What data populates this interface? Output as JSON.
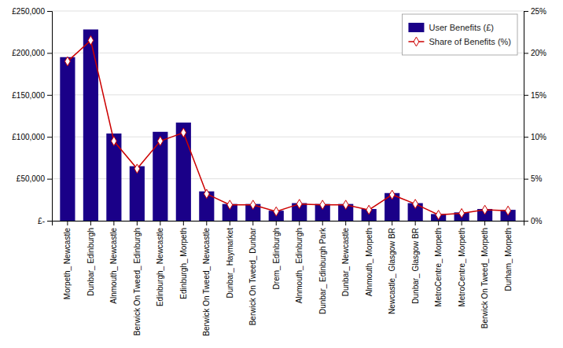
{
  "chart_data": {
    "type": "bar",
    "categories": [
      "Morpeth_ Newcastle",
      "Dunbar_ Edinburgh",
      "Alnmouth_ Newcastle",
      "Berwick On Tweed_ Edinburgh",
      "Edinburgh_ Newcastle",
      "Edinburgh_ Morpeth",
      "Berwick On Tweed_ Newcastle",
      "Dunbar_ Haymarket",
      "Berwick On Tweed_ Dunbar",
      "Drem_ Edinburgh",
      "Alnmouth_ Edinburgh",
      "Dunbar_ Edinburgh Park",
      "Dunbar_ Newcastle",
      "Alnmouth_ Morpeth",
      "Newcastle_ Glasgow BR",
      "Dunbar_ Glasgow BR",
      "MetroCentre_ Morpeth",
      "MetroCentre_ Morpeth",
      "Berwick On Tweed_ Morpeth",
      "Durham_ Morpeth"
    ],
    "series": [
      {
        "name": "User Benefits (£)",
        "type": "bar",
        "color": "#1a0088",
        "values": [
          195000,
          228000,
          104000,
          65000,
          106000,
          117000,
          35000,
          20000,
          20000,
          12000,
          21000,
          20000,
          20000,
          14000,
          33000,
          21000,
          8000,
          10000,
          14000,
          13000
        ]
      },
      {
        "name": "Share of Benefits (%)",
        "type": "line",
        "axis": "y2",
        "color": "#CC0000",
        "marker": "diamond",
        "values": [
          19.0,
          21.5,
          9.5,
          6.2,
          9.5,
          10.5,
          3.2,
          1.9,
          1.9,
          1.1,
          2.0,
          1.9,
          1.9,
          1.3,
          3.1,
          2.0,
          0.7,
          0.9,
          1.3,
          1.2
        ]
      }
    ],
    "ylim": [
      0,
      250000
    ],
    "yticks": [
      {
        "value": 0,
        "label": "£-"
      },
      {
        "value": 50000,
        "label": "£50,000"
      },
      {
        "value": 100000,
        "label": "£100,000"
      },
      {
        "value": 150000,
        "label": "£150,000"
      },
      {
        "value": 200000,
        "label": "£200,000"
      },
      {
        "value": 250000,
        "label": "£250,000"
      }
    ],
    "y2lim": [
      0,
      25
    ],
    "y2ticks": [
      {
        "value": 0,
        "label": "0%"
      },
      {
        "value": 5,
        "label": "5%"
      },
      {
        "value": 10,
        "label": "10%"
      },
      {
        "value": 15,
        "label": "15%"
      },
      {
        "value": 20,
        "label": "20%"
      },
      {
        "value": 25,
        "label": "25%"
      }
    ],
    "grid": true,
    "legend": "upper right"
  }
}
